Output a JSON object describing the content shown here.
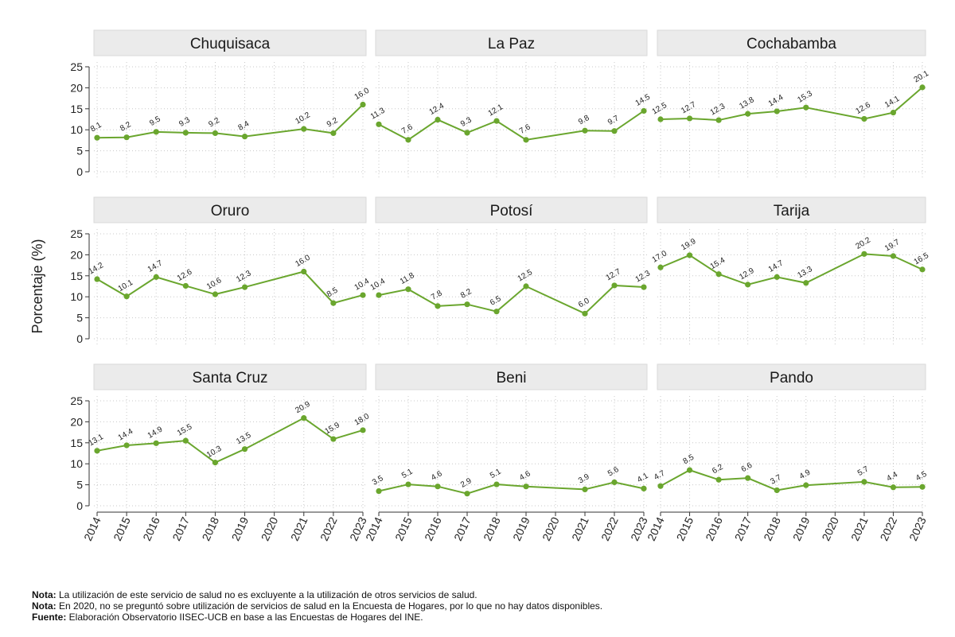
{
  "chart_data": {
    "type": "line",
    "ylabel": "Porcentaje (%)",
    "ylim": [
      0,
      25
    ],
    "yticks": [
      0,
      5,
      10,
      15,
      20,
      25
    ],
    "x_ticks": [
      "2014",
      "2015",
      "2016",
      "2017",
      "2018",
      "2019",
      "2020",
      "2021",
      "2022",
      "2023"
    ],
    "grid": true,
    "line_color": "#6aa62e",
    "panels": [
      {
        "name": "Chuquisaca",
        "x": [
          "2014",
          "2015",
          "2016",
          "2017",
          "2018",
          "2019",
          "2021",
          "2022",
          "2023"
        ],
        "values": [
          8.1,
          8.2,
          9.5,
          9.3,
          9.2,
          8.4,
          10.2,
          9.2,
          16.0
        ],
        "labels": [
          "8.1",
          "8.2",
          "9.5",
          "9.3",
          "9.2",
          "8.4",
          "10.2",
          "9.2",
          "16.0"
        ]
      },
      {
        "name": "La Paz",
        "x": [
          "2014",
          "2015",
          "2016",
          "2017",
          "2018",
          "2019",
          "2021",
          "2022",
          "2023"
        ],
        "values": [
          11.3,
          7.6,
          12.4,
          9.3,
          12.1,
          7.6,
          9.8,
          9.7,
          14.5
        ],
        "labels": [
          "11.3",
          "7.6",
          "12.4",
          "9.3",
          "12.1",
          "7.6",
          "9.8",
          "9.7",
          "14.5"
        ]
      },
      {
        "name": "Cochabamba",
        "x": [
          "2014",
          "2015",
          "2016",
          "2017",
          "2018",
          "2019",
          "2021",
          "2022",
          "2023"
        ],
        "values": [
          12.5,
          12.7,
          12.3,
          13.8,
          14.4,
          15.3,
          12.6,
          14.1,
          20.1
        ],
        "labels": [
          "12.5",
          "12.7",
          "12.3",
          "13.8",
          "14.4",
          "15.3",
          "12.6",
          "14.1",
          "20.1"
        ]
      },
      {
        "name": "Oruro",
        "x": [
          "2014",
          "2015",
          "2016",
          "2017",
          "2018",
          "2019",
          "2021",
          "2022",
          "2023"
        ],
        "values": [
          14.2,
          10.1,
          14.7,
          12.6,
          10.6,
          12.3,
          16.0,
          8.5,
          10.4
        ],
        "labels": [
          "14.2",
          "10.1",
          "14.7",
          "12.6",
          "10.6",
          "12.3",
          "16.0",
          "8.5",
          "10.4"
        ]
      },
      {
        "name": "Potosí",
        "x": [
          "2014",
          "2015",
          "2016",
          "2017",
          "2018",
          "2019",
          "2021",
          "2022",
          "2023"
        ],
        "values": [
          10.4,
          11.8,
          7.8,
          8.2,
          6.5,
          12.5,
          6.0,
          12.7,
          12.3
        ],
        "labels": [
          "10.4",
          "11.8",
          "7.8",
          "8.2",
          "6.5",
          "12.5",
          "6.0",
          "12.7",
          "12.3"
        ]
      },
      {
        "name": "Tarija",
        "x": [
          "2014",
          "2015",
          "2016",
          "2017",
          "2018",
          "2019",
          "2021",
          "2022",
          "2023"
        ],
        "values": [
          17.0,
          19.9,
          15.4,
          12.9,
          14.7,
          13.3,
          20.2,
          19.7,
          16.5
        ],
        "labels": [
          "17.0",
          "19.9",
          "15.4",
          "12.9",
          "14.7",
          "13.3",
          "20.2",
          "19.7",
          "16.5"
        ]
      },
      {
        "name": "Santa Cruz",
        "x": [
          "2014",
          "2015",
          "2016",
          "2017",
          "2018",
          "2019",
          "2021",
          "2022",
          "2023"
        ],
        "values": [
          13.1,
          14.4,
          14.9,
          15.5,
          10.3,
          13.5,
          20.9,
          15.9,
          18.0
        ],
        "labels": [
          "13.1",
          "14.4",
          "14.9",
          "15.5",
          "10.3",
          "13.5",
          "20.9",
          "15.9",
          "18.0"
        ]
      },
      {
        "name": "Beni",
        "x": [
          "2014",
          "2015",
          "2016",
          "2017",
          "2018",
          "2019",
          "2021",
          "2022",
          "2023"
        ],
        "values": [
          3.5,
          5.1,
          4.6,
          2.9,
          5.1,
          4.6,
          3.9,
          5.6,
          4.1
        ],
        "labels": [
          "3.5",
          "5.1",
          "4.6",
          "2.9",
          "5.1",
          "4.6",
          "3.9",
          "5.6",
          "4.1"
        ]
      },
      {
        "name": "Pando",
        "x": [
          "2014",
          "2015",
          "2016",
          "2017",
          "2018",
          "2019",
          "2021",
          "2022",
          "2023"
        ],
        "values": [
          4.7,
          8.5,
          6.2,
          6.6,
          3.7,
          4.9,
          5.7,
          4.4,
          4.5
        ],
        "labels": [
          "4.7",
          "8.5",
          "6.2",
          "6.6",
          "3.7",
          "4.9",
          "5.7",
          "4.4",
          "4.5"
        ]
      }
    ]
  },
  "notes": [
    {
      "label": "Nota:",
      "text": " La utilización de este servicio de salud no es excluyente a la utilización de otros servicios de salud."
    },
    {
      "label": "Nota:",
      "text": " En 2020, no se preguntó sobre utilización de servicios de salud en la Encuesta de Hogares, por lo que no hay datos disponibles."
    },
    {
      "label": "Fuente:",
      "text": " Elaboración Observatorio IISEC-UCB en base a las Encuestas de Hogares del INE."
    }
  ]
}
